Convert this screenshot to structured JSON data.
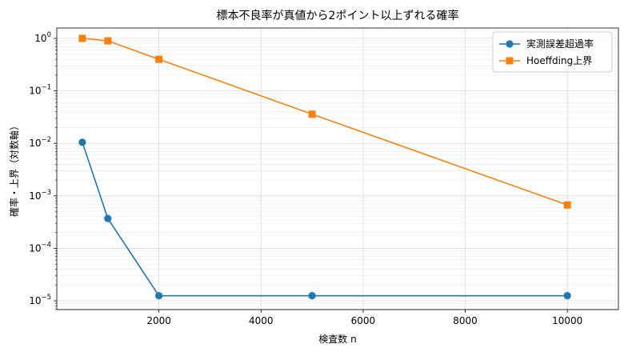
{
  "chart_data": {
    "type": "line",
    "title": "標本不良率が真値から2ポイント以上ずれる確率",
    "xlabel": "検査数 n",
    "ylabel": "確率・上界（対数軸）",
    "yscale": "log",
    "xlim": [
      0,
      11000
    ],
    "ylim": [
      6.8e-06,
      1.58
    ],
    "xticks": [
      2000,
      4000,
      6000,
      8000,
      10000
    ],
    "xtick_labels": [
      "2000",
      "4000",
      "6000",
      "8000",
      "10000"
    ],
    "yticks": [
      1e-05,
      0.0001,
      0.001,
      0.01,
      0.1,
      1
    ],
    "ytick_labels": [
      {
        "base": "10",
        "exp": "−5"
      },
      {
        "base": "10",
        "exp": "−4"
      },
      {
        "base": "10",
        "exp": "−3"
      },
      {
        "base": "10",
        "exp": "−2"
      },
      {
        "base": "10",
        "exp": "−1"
      },
      {
        "base": "10",
        "exp": "0"
      }
    ],
    "grid": true,
    "legend_position": "top-right",
    "x": [
      500,
      1000,
      2000,
      5000,
      10000
    ],
    "series": [
      {
        "name": "実測誤差超過率",
        "color": "#1f77b4",
        "marker": "circle",
        "values": [
          0.0105,
          0.00037,
          1.25e-05,
          1.25e-05,
          1.25e-05
        ]
      },
      {
        "name": "Hoeffding上界",
        "color": "#ff7f0e",
        "marker": "square",
        "values": [
          1.0,
          0.9,
          0.4,
          0.036,
          0.00067
        ]
      }
    ]
  }
}
